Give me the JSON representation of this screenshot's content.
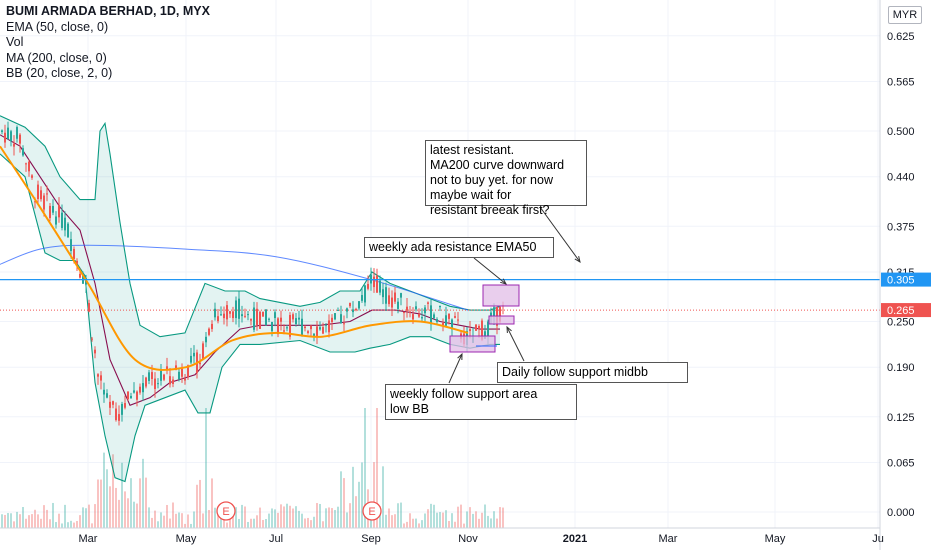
{
  "legend": {
    "title": "BUMI ARMADA BERHAD, 1D, MYX",
    "indicators": [
      "EMA (50, close, 0)",
      "Vol",
      "MA (200, close, 0)",
      "BB (20, close, 2, 0)"
    ]
  },
  "currency": "MYR",
  "annotations": {
    "latest": [
      "latest resistant.",
      "MA200 curve downward",
      "not to buy yet. for now",
      "maybe wait for",
      "resistant breeak first?"
    ],
    "weekly_resistance": "weekly ada resistance EMA50",
    "daily_support": "Daily follow support midbb",
    "weekly_support": [
      "weekly follow support area",
      "low BB"
    ]
  },
  "colors": {
    "up": "#26a69a",
    "down": "#ef5350",
    "ema50": "#ff9800",
    "ma200": "#2962ff",
    "bb": "#089981",
    "bb_basis": "#880e4f",
    "resistance": "#2196f3",
    "box": "#9c27b0"
  },
  "chart_data": {
    "type": "candlestick",
    "title": "BUMI ARMADA BERHAD, 1D, MYX",
    "x_ticks": [
      "Mar",
      "May",
      "Jul",
      "Sep",
      "Nov",
      "2021",
      "Mar",
      "May",
      "Ju"
    ],
    "y_ticks": [
      0.0,
      0.065,
      0.125,
      0.19,
      0.25,
      0.315,
      0.375,
      0.44,
      0.5,
      0.565,
      0.625
    ],
    "ylim": [
      -0.02,
      0.645
    ],
    "price_markers": [
      {
        "label": "0.305",
        "value": 0.305,
        "color": "#2196f3"
      },
      {
        "label": "0.265",
        "value": 0.265,
        "color": "#ef5350"
      }
    ],
    "series": [
      {
        "name": "EMA (50, close, 0)",
        "points": [
          [
            "Jan",
            0.48
          ],
          [
            "Feb",
            0.4
          ],
          [
            "Mar",
            0.3
          ],
          [
            "Apr",
            0.2
          ],
          [
            "May",
            0.19
          ],
          [
            "Jun",
            0.225
          ],
          [
            "Jul",
            0.235
          ],
          [
            "Aug",
            0.23
          ],
          [
            "Sep",
            0.245
          ],
          [
            "Oct",
            0.25
          ],
          [
            "Nov",
            0.235
          ]
        ]
      },
      {
        "name": "MA (200, close, 0)",
        "points": [
          [
            "Jan",
            0.325
          ],
          [
            "Feb",
            0.345
          ],
          [
            "Mar",
            0.35
          ],
          [
            "May",
            0.345
          ],
          [
            "Jul",
            0.335
          ],
          [
            "Sep",
            0.305
          ],
          [
            "Nov",
            0.265
          ]
        ]
      }
    ],
    "events": [
      "E",
      "E"
    ]
  }
}
